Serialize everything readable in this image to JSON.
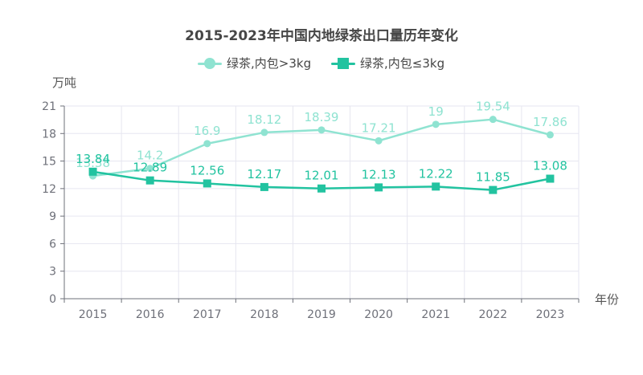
{
  "chart_data": {
    "type": "line",
    "title": "2015-2023年中国内地绿茶出口量历年变化",
    "xlabel": "年份",
    "ylabel": "万吨",
    "categories": [
      "2015",
      "2016",
      "2017",
      "2018",
      "2019",
      "2020",
      "2021",
      "2022",
      "2023"
    ],
    "ylim": [
      0,
      21
    ],
    "yticks": [
      0,
      3,
      6,
      9,
      12,
      15,
      18,
      21
    ],
    "grid": true,
    "legend_position": "top-center",
    "series": [
      {
        "name": "绿茶,内包>3kg",
        "marker": "circle",
        "color": "#8fe3d1",
        "values": [
          13.38,
          14.2,
          16.9,
          18.12,
          18.39,
          17.21,
          19,
          19.54,
          17.86
        ]
      },
      {
        "name": "绿茶,内包≤3kg",
        "marker": "square",
        "color": "#22c3a0",
        "values": [
          13.84,
          12.89,
          12.56,
          12.17,
          12.01,
          12.13,
          12.22,
          11.85,
          13.08
        ]
      }
    ]
  }
}
